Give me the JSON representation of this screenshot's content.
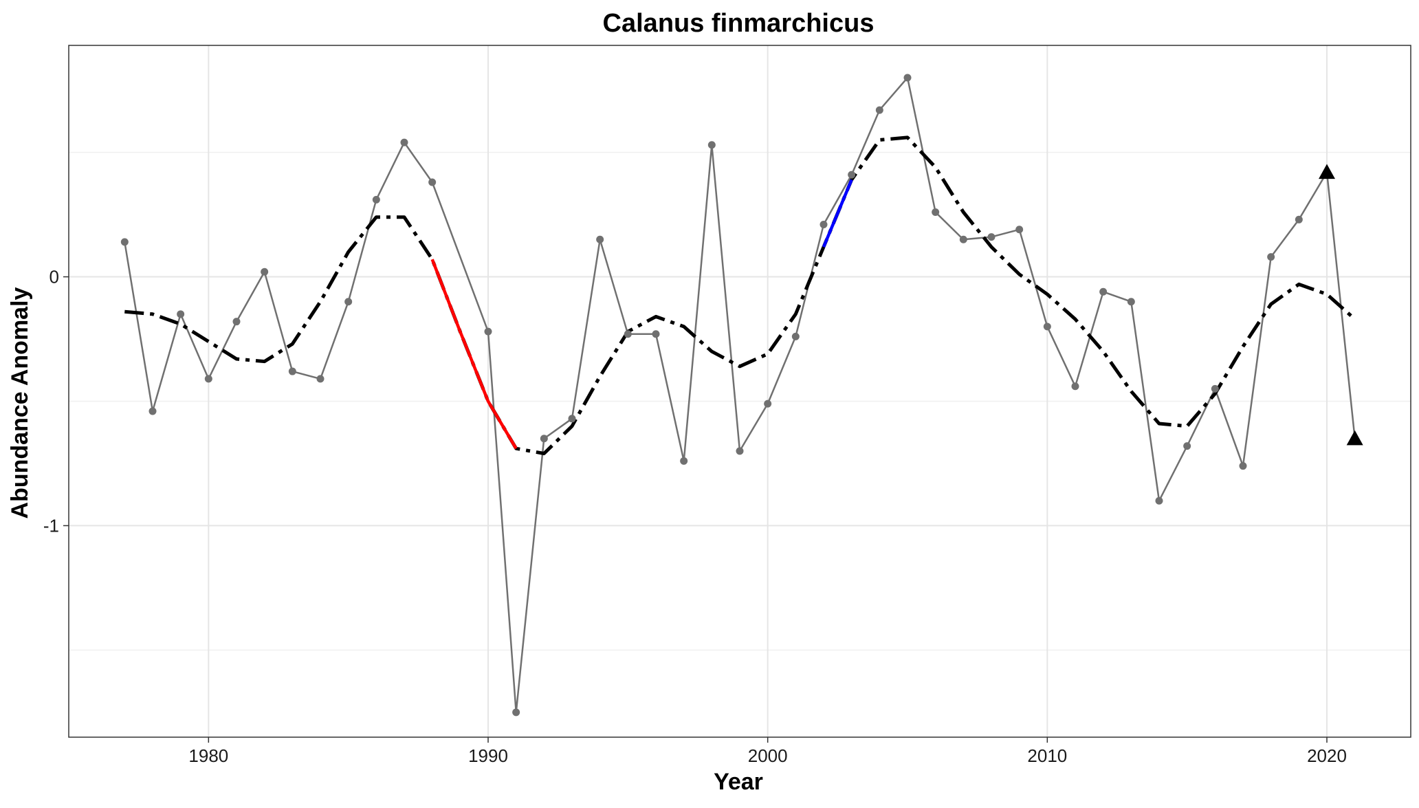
{
  "chart_data": {
    "type": "line",
    "title": "Calanus finmarchicus",
    "xlabel": "Year",
    "ylabel": "Abundance Anomaly",
    "xlim": [
      1975,
      2023
    ],
    "ylim": [
      -1.85,
      0.93
    ],
    "x_ticks": [
      1980,
      1990,
      2000,
      2010,
      2020
    ],
    "x_tick_labels": [
      "1980",
      "1990",
      "2000",
      "2010",
      "2020"
    ],
    "y_ticks": [
      -1,
      0
    ],
    "y_tick_labels": [
      "-1",
      "0"
    ],
    "y_minor_gridlines": [
      -1.5,
      -0.5,
      0.5
    ],
    "grid": true,
    "series": [
      {
        "role": "observed",
        "color": "#707070",
        "x": [
          1977,
          1978,
          1979,
          1980,
          1981,
          1982,
          1983,
          1984,
          1985,
          1986,
          1987,
          1988,
          1990,
          1991,
          1992,
          1993,
          1994,
          1995,
          1996,
          1997,
          1998,
          1999,
          2000,
          2001,
          2002,
          2003,
          2004,
          2005,
          2006,
          2007,
          2008,
          2009,
          2010,
          2011,
          2012,
          2013,
          2014,
          2015,
          2016,
          2017,
          2018,
          2019,
          2020
        ],
        "y": [
          0.14,
          -0.54,
          -0.15,
          -0.41,
          -0.18,
          0.02,
          -0.38,
          -0.41,
          -0.1,
          0.31,
          0.54,
          0.38,
          -0.22,
          -1.75,
          -0.65,
          -0.57,
          0.15,
          -0.23,
          -0.23,
          -0.74,
          0.53,
          -0.7,
          -0.51,
          -0.24,
          0.21,
          0.41,
          0.67,
          0.8,
          0.26,
          0.15,
          0.16,
          0.19,
          -0.2,
          -0.44,
          -0.06,
          -0.1,
          -0.9,
          -0.68,
          -0.45,
          -0.76,
          0.08,
          0.23,
          0.42
        ]
      },
      {
        "role": "observed-recent",
        "color": "#707070",
        "x": [
          2020,
          2021
        ],
        "y": [
          0.42,
          -0.65
        ]
      },
      {
        "role": "highlight-points",
        "color": "#000000",
        "marker": "triangle",
        "x": [
          2020,
          2021
        ],
        "y": [
          0.42,
          -0.65
        ]
      },
      {
        "role": "smoothed-trend",
        "color": "#000000",
        "dash": "dashed",
        "x": [
          1977,
          1978,
          1979,
          1980,
          1981,
          1982,
          1983,
          1984,
          1985,
          1986,
          1987,
          1988,
          1989,
          1990,
          1991,
          1992,
          1993,
          1994,
          1995,
          1996,
          1997,
          1998,
          1999,
          2000,
          2001,
          2002,
          2003,
          2004,
          2005,
          2006,
          2007,
          2008,
          2009,
          2010,
          2011,
          2012,
          2013,
          2014,
          2015,
          2016,
          2017,
          2018,
          2019,
          2020,
          2021
        ],
        "y": [
          -0.14,
          -0.15,
          -0.19,
          -0.26,
          -0.33,
          -0.34,
          -0.27,
          -0.1,
          0.1,
          0.24,
          0.24,
          0.07,
          -0.22,
          -0.5,
          -0.69,
          -0.71,
          -0.6,
          -0.4,
          -0.22,
          -0.16,
          -0.2,
          -0.3,
          -0.36,
          -0.31,
          -0.15,
          0.12,
          0.39,
          0.55,
          0.56,
          0.44,
          0.26,
          0.12,
          0.01,
          -0.07,
          -0.17,
          -0.3,
          -0.46,
          -0.59,
          -0.6,
          -0.47,
          -0.28,
          -0.11,
          -0.03,
          -0.07,
          -0.17
        ]
      },
      {
        "role": "significant-decrease",
        "color": "#ff0000",
        "x": [
          1988,
          1989,
          1990,
          1991
        ],
        "y": [
          0.07,
          -0.22,
          -0.5,
          -0.69
        ]
      },
      {
        "role": "significant-increase",
        "color": "#0000ff",
        "x": [
          2002,
          2003
        ],
        "y": [
          0.12,
          0.39
        ]
      }
    ]
  }
}
